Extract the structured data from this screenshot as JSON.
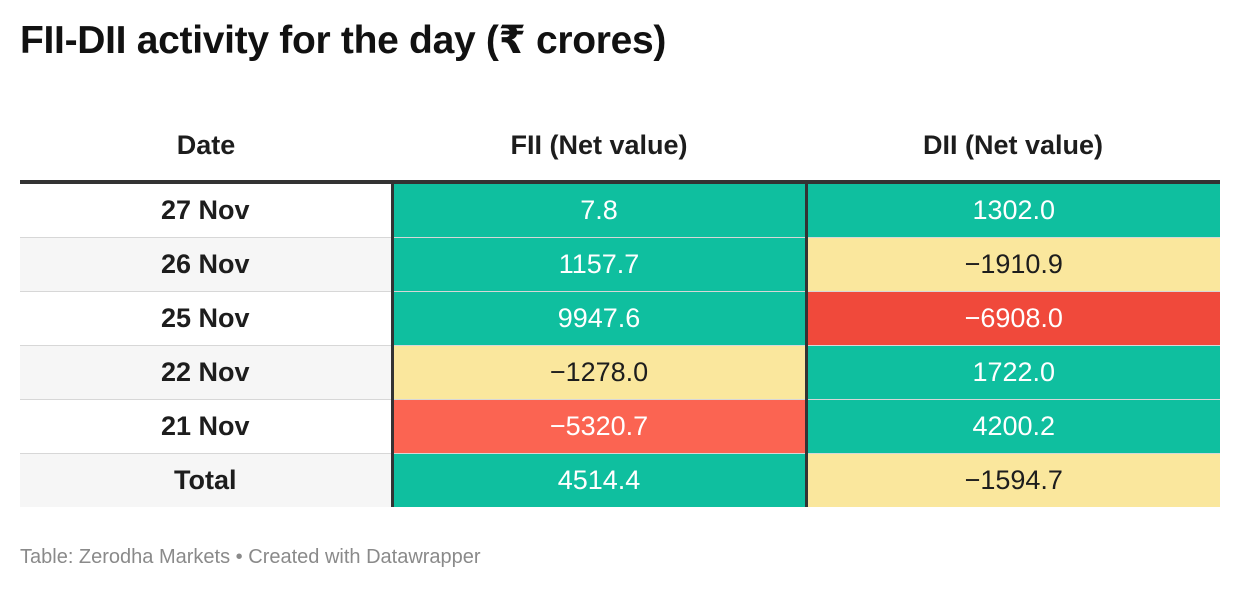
{
  "title": "FII-DII activity for the day (₹ crores)",
  "footer": {
    "source": "Table: Zerodha Markets",
    "separator": "•",
    "credit": "Created with Datawrapper"
  },
  "colors": {
    "positive": "#0fbf9f",
    "negative_small": "#fae79d",
    "negative_medium": "#fb6452",
    "negative_large": "#f0493b",
    "header_rule": "#333333"
  },
  "chart_data": {
    "type": "table",
    "columns": [
      "Date",
      "FII (Net value)",
      "DII (Net value)"
    ],
    "rows": [
      {
        "date": "27 Nov",
        "fii": "7.8",
        "dii": "1302.0",
        "fii_value": 7.8,
        "dii_value": 1302.0
      },
      {
        "date": "26 Nov",
        "fii": "1157.7",
        "dii": "−1910.9",
        "fii_value": 1157.7,
        "dii_value": -1910.9
      },
      {
        "date": "25 Nov",
        "fii": "9947.6",
        "dii": "−6908.0",
        "fii_value": 9947.6,
        "dii_value": -6908.0
      },
      {
        "date": "22 Nov",
        "fii": "−1278.0",
        "dii": "1722.0",
        "fii_value": -1278.0,
        "dii_value": 1722.0
      },
      {
        "date": "21 Nov",
        "fii": "−5320.7",
        "dii": "4200.2",
        "fii_value": -5320.7,
        "dii_value": 4200.2
      },
      {
        "date": "Total",
        "fii": "4514.4",
        "dii": "−1594.7",
        "fii_value": 4514.4,
        "dii_value": -1594.7
      }
    ]
  }
}
